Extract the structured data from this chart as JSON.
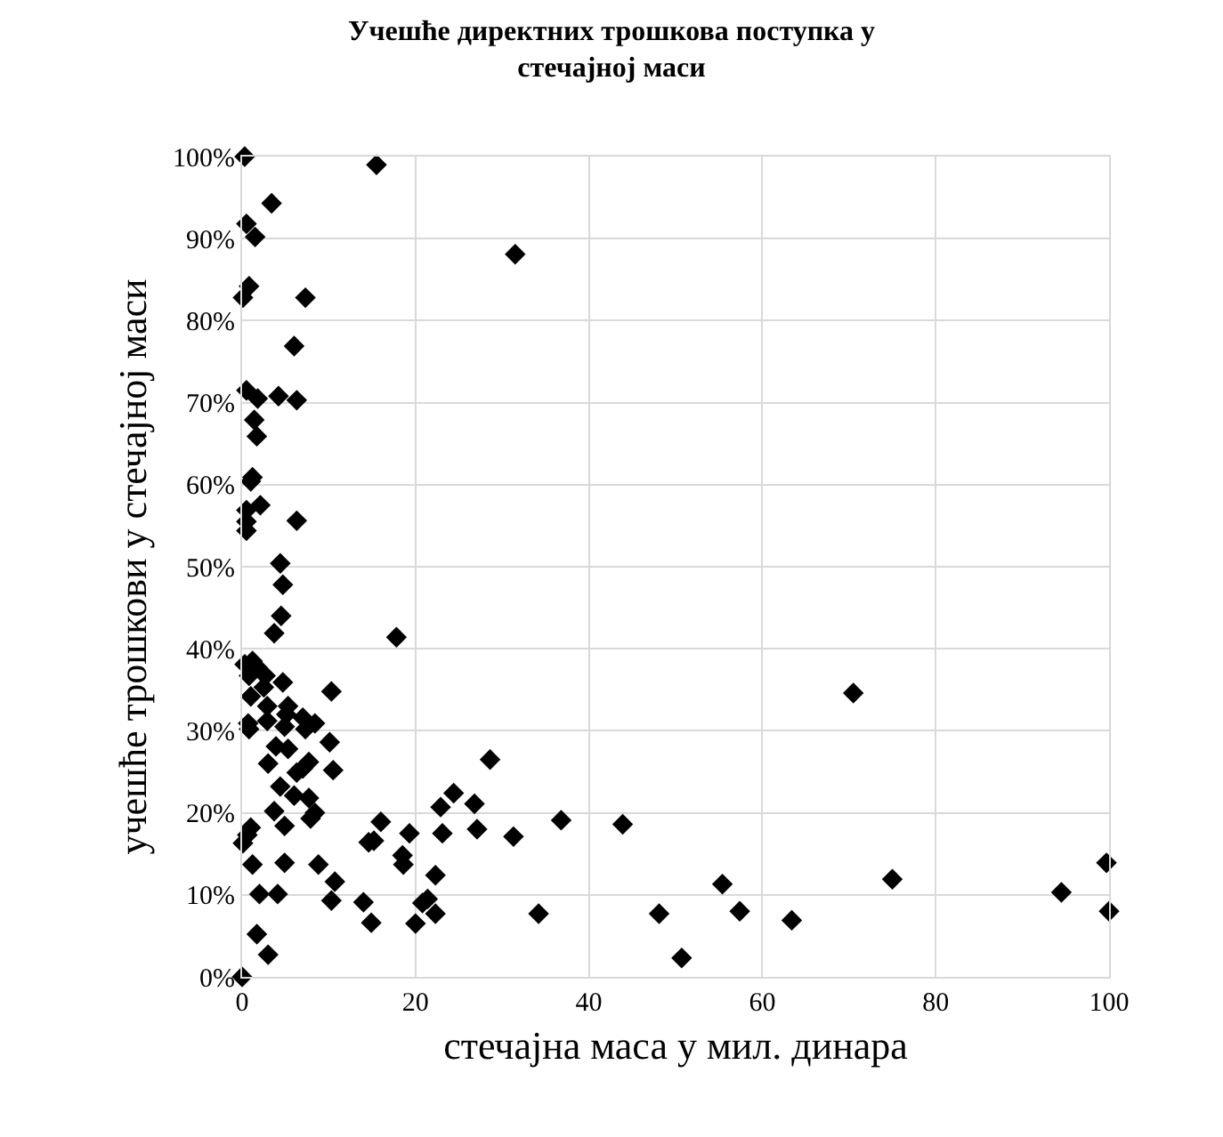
{
  "chart_data": {
    "type": "scatter",
    "title": "Учешће директних трошкова поступка у\nстечајној маси",
    "xlabel": "стечајна маса у мил. динара",
    "ylabel": "учешће трошкови у стечајној маси",
    "xlim": [
      0,
      100
    ],
    "xticks": [
      0,
      20,
      40,
      60,
      80,
      100
    ],
    "ylim": [
      0,
      100
    ],
    "yticks": [
      {
        "value": 0,
        "label": "0%"
      },
      {
        "value": 10,
        "label": "10%"
      },
      {
        "value": 20,
        "label": "20%"
      },
      {
        "value": 30,
        "label": "30%"
      },
      {
        "value": 40,
        "label": "40%"
      },
      {
        "value": 50,
        "label": "50%"
      },
      {
        "value": 60,
        "label": "60%"
      },
      {
        "value": 70,
        "label": "70%"
      },
      {
        "value": 80,
        "label": "80%"
      },
      {
        "value": 90,
        "label": "90%"
      },
      {
        "value": 100,
        "label": "100%"
      }
    ],
    "grid": true,
    "marker": "diamond",
    "series": [
      {
        "color": "#000000",
        "x": [
          0.3,
          15.5,
          3.4,
          0.5,
          1.5,
          0.8,
          0.1,
          7.3,
          6.0,
          0.5,
          1.8,
          4.2,
          6.3,
          1.4,
          1.7,
          1.2,
          1.0,
          2.1,
          0.5,
          0.5,
          0.5,
          6.3,
          4.4,
          4.7,
          4.5,
          3.7,
          31.5,
          17.8,
          0.3,
          1.2,
          1.8,
          2.7,
          0.8,
          2.5,
          4.7,
          1.0,
          2.9,
          5.3,
          2.9,
          5.1,
          7.0,
          0.7,
          0.8,
          4.9,
          7.3,
          8.4,
          3.9,
          5.3,
          10.1,
          3.0,
          7.7,
          7.0,
          6.3,
          4.4,
          6.0,
          7.7,
          8.4,
          7.9,
          3.7,
          4.9,
          1.0,
          0.6,
          0.1,
          1.2,
          4.9,
          2.0,
          4.1,
          1.7,
          3.0,
          0.0,
          10.3,
          10.5,
          8.8,
          10.7,
          10.3,
          70.5,
          28.6,
          24.4,
          22.9,
          26.8,
          19.3,
          23.1,
          27.1,
          31.3,
          36.8,
          43.9,
          22.3,
          21.4,
          20.8,
          20.0,
          22.3,
          34.2,
          48.1,
          50.7,
          55.4,
          57.4,
          63.4,
          75.0,
          94.5,
          99.7,
          100.0,
          16.0,
          14.6,
          15.2,
          18.5,
          18.6,
          14.0,
          14.9
        ],
        "values": [
          100,
          99.0,
          94.3,
          91.8,
          90.2,
          84.2,
          82.8,
          82.8,
          76.9,
          71.5,
          70.5,
          70.8,
          70.3,
          67.9,
          65.9,
          60.9,
          60.4,
          57.5,
          56.9,
          55.5,
          54.4,
          55.6,
          50.4,
          47.8,
          44.0,
          41.9,
          88.1,
          41.4,
          38.1,
          38.5,
          37.7,
          36.7,
          36.7,
          35.3,
          35.9,
          34.2,
          33.0,
          33.0,
          31.2,
          32.0,
          31.6,
          30.9,
          30.2,
          30.5,
          30.2,
          30.9,
          28.1,
          27.8,
          28.6,
          26.0,
          26.2,
          25.4,
          24.9,
          23.2,
          22.1,
          21.8,
          20.0,
          19.3,
          20.2,
          18.4,
          18.2,
          17.3,
          16.3,
          13.7,
          13.9,
          10.1,
          10.1,
          5.2,
          2.7,
          0,
          34.8,
          25.2,
          13.7,
          11.6,
          9.3,
          34.6,
          26.5,
          22.4,
          20.7,
          21.1,
          17.5,
          17.5,
          18.0,
          17.1,
          19.1,
          18.6,
          12.4,
          9.5,
          9.0,
          6.5,
          7.7,
          7.7,
          7.7,
          2.3,
          11.3,
          8.0,
          6.9,
          11.9,
          10.3,
          13.9,
          8.0,
          18.9,
          16.4,
          16.6,
          14.8,
          13.7,
          9.1,
          6.6
        ]
      }
    ]
  }
}
